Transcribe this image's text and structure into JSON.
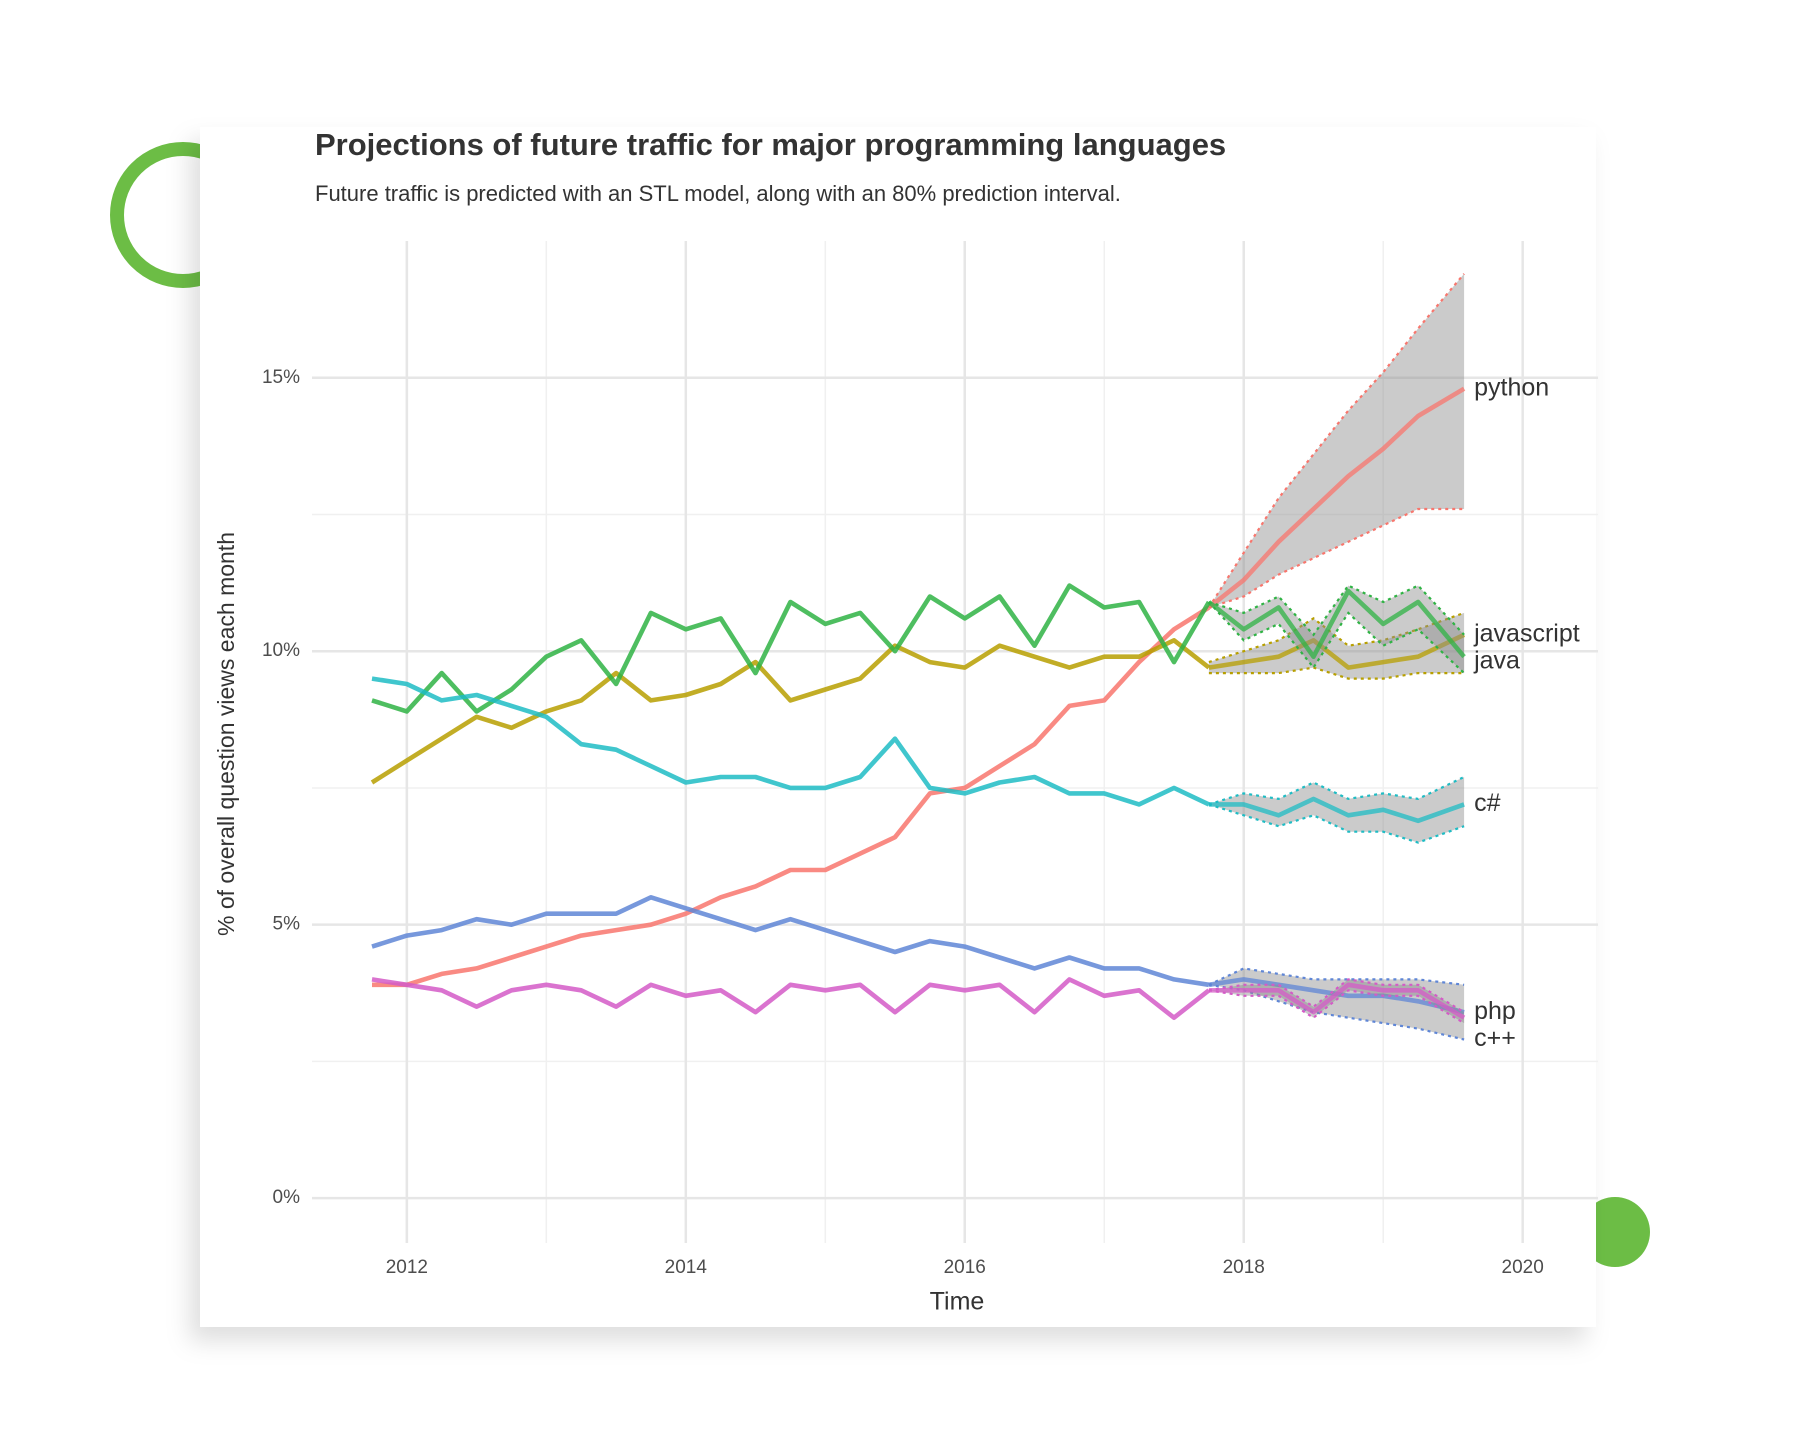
{
  "chart_data": {
    "type": "line",
    "title": "Projections of future traffic for major programming languages",
    "subtitle": "Future traffic is predicted with an STL model, along with an 80% prediction interval.",
    "x_label": "Time",
    "y_label": "% of overall question views each month",
    "xlim": [
      2011.32,
      2020.54
    ],
    "xticks": [
      2012,
      2014,
      2016,
      2018,
      2020
    ],
    "minor_xticks": [
      2013,
      2015,
      2017,
      2019
    ],
    "ylim": [
      -0.82,
      17.5
    ],
    "yticks": [
      {
        "value": 0,
        "label": "0%"
      },
      {
        "value": 5,
        "label": "5%"
      },
      {
        "value": 10,
        "label": "10%"
      },
      {
        "value": 15,
        "label": "15%"
      }
    ],
    "minor_yticks": [
      2.5,
      7.5,
      12.5
    ],
    "grid": true,
    "band_color": "#8c8c8c",
    "x": [
      2011.75,
      2012.0,
      2012.25,
      2012.5,
      2012.75,
      2013.0,
      2013.25,
      2013.5,
      2013.75,
      2014.0,
      2014.25,
      2014.5,
      2014.75,
      2015.0,
      2015.25,
      2015.5,
      2015.75,
      2016.0,
      2016.25,
      2016.5,
      2016.75,
      2017.0,
      2017.25,
      2017.5,
      2017.75
    ],
    "forecast_x": [
      2017.75,
      2018.0,
      2018.25,
      2018.5,
      2018.75,
      2019.0,
      2019.25,
      2019.58
    ],
    "series": [
      {
        "name": "python",
        "color": "#f8766d",
        "values": [
          3.9,
          3.9,
          4.1,
          4.2,
          4.4,
          4.6,
          4.8,
          4.9,
          5.0,
          5.2,
          5.5,
          5.7,
          6.0,
          6.0,
          6.3,
          6.6,
          7.4,
          7.5,
          7.9,
          8.3,
          9.0,
          9.1,
          9.8,
          10.4,
          10.8
        ],
        "forecast": {
          "values": [
            10.8,
            11.3,
            12.0,
            12.6,
            13.2,
            13.7,
            14.3,
            14.8
          ],
          "lower": [
            10.8,
            11.0,
            11.4,
            11.7,
            12.0,
            12.3,
            12.6,
            12.6
          ],
          "upper": [
            10.8,
            11.8,
            12.8,
            13.6,
            14.4,
            15.1,
            15.9,
            16.9
          ]
        }
      },
      {
        "name": "javascript",
        "color": "#b79f00",
        "values": [
          7.6,
          8.0,
          8.4,
          8.8,
          8.6,
          8.9,
          9.1,
          9.6,
          9.1,
          9.2,
          9.4,
          9.8,
          9.1,
          9.3,
          9.5,
          10.1,
          9.8,
          9.7,
          10.1,
          9.9,
          9.7,
          9.9,
          9.9,
          10.2,
          9.7
        ],
        "forecast": {
          "values": [
            9.7,
            9.8,
            9.9,
            10.2,
            9.7,
            9.8,
            9.9,
            10.3
          ],
          "lower": [
            9.6,
            9.6,
            9.6,
            9.7,
            9.5,
            9.5,
            9.6,
            9.6
          ],
          "upper": [
            9.8,
            10.0,
            10.2,
            10.6,
            10.1,
            10.2,
            10.4,
            10.7
          ]
        }
      },
      {
        "name": "java",
        "color": "#2fb344",
        "values": [
          9.1,
          8.9,
          9.6,
          8.9,
          9.3,
          9.9,
          10.2,
          9.4,
          10.7,
          10.4,
          10.6,
          9.6,
          10.9,
          10.5,
          10.7,
          10.0,
          11.0,
          10.6,
          11.0,
          10.1,
          11.2,
          10.8,
          10.9,
          9.8,
          10.9
        ],
        "forecast": {
          "values": [
            10.9,
            10.4,
            10.8,
            9.9,
            11.1,
            10.5,
            10.9,
            9.9
          ],
          "lower": [
            10.9,
            10.2,
            10.5,
            9.7,
            10.7,
            10.1,
            10.4,
            9.6
          ],
          "upper": [
            10.9,
            10.7,
            11.0,
            10.3,
            11.2,
            10.9,
            11.2,
            10.3
          ]
        }
      },
      {
        "name": "c#",
        "color": "#1fbcc4",
        "values": [
          9.5,
          9.4,
          9.1,
          9.2,
          9.0,
          8.8,
          8.3,
          8.2,
          7.9,
          7.6,
          7.7,
          7.7,
          7.5,
          7.5,
          7.7,
          8.4,
          7.5,
          7.4,
          7.6,
          7.7,
          7.4,
          7.4,
          7.2,
          7.5,
          7.2
        ],
        "forecast": {
          "values": [
            7.2,
            7.2,
            7.0,
            7.3,
            7.0,
            7.1,
            6.9,
            7.2
          ],
          "lower": [
            7.2,
            7.0,
            6.8,
            7.0,
            6.7,
            6.7,
            6.5,
            6.8
          ],
          "upper": [
            7.2,
            7.4,
            7.3,
            7.6,
            7.3,
            7.4,
            7.3,
            7.7
          ]
        }
      },
      {
        "name": "php",
        "color": "#5f86d6",
        "values": [
          4.6,
          4.8,
          4.9,
          5.1,
          5.0,
          5.2,
          5.2,
          5.2,
          5.5,
          5.3,
          5.1,
          4.9,
          5.1,
          4.9,
          4.7,
          4.5,
          4.7,
          4.6,
          4.4,
          4.2,
          4.4,
          4.2,
          4.2,
          4.0,
          3.9
        ],
        "forecast": {
          "values": [
            3.9,
            4.0,
            3.9,
            3.8,
            3.7,
            3.7,
            3.6,
            3.4
          ],
          "lower": [
            3.9,
            3.8,
            3.6,
            3.4,
            3.3,
            3.2,
            3.1,
            2.9
          ],
          "upper": [
            3.9,
            4.2,
            4.1,
            4.0,
            4.0,
            4.0,
            4.0,
            3.9
          ]
        }
      },
      {
        "name": "c++",
        "color": "#d45bc7",
        "values": [
          4.0,
          3.9,
          3.8,
          3.5,
          3.8,
          3.9,
          3.8,
          3.5,
          3.9,
          3.7,
          3.8,
          3.4,
          3.9,
          3.8,
          3.9,
          3.4,
          3.9,
          3.8,
          3.9,
          3.4,
          4.0,
          3.7,
          3.8,
          3.3,
          3.8
        ],
        "forecast": {
          "values": [
            3.8,
            3.8,
            3.8,
            3.4,
            3.9,
            3.8,
            3.8,
            3.3
          ],
          "lower": [
            3.8,
            3.7,
            3.7,
            3.3,
            3.8,
            3.7,
            3.7,
            3.2
          ],
          "upper": [
            3.8,
            3.9,
            3.9,
            3.5,
            4.0,
            3.9,
            3.9,
            3.4
          ]
        }
      }
    ]
  }
}
